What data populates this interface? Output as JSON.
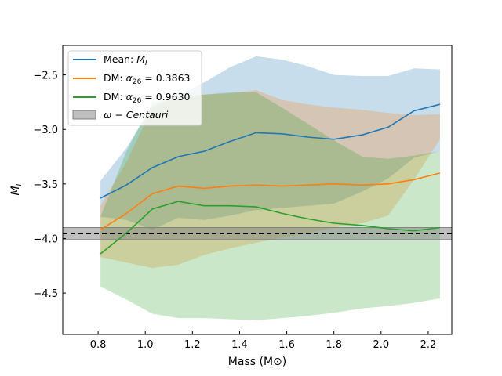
{
  "chart_data": {
    "type": "line",
    "xlabel": "Mass (M⊙)",
    "ylabel": "M_I",
    "xlim": [
      0.65,
      2.3
    ],
    "ylim": [
      -4.88,
      -2.23
    ],
    "xticks": [
      0.8,
      1.0,
      1.2,
      1.4,
      1.6,
      1.8,
      2.0,
      2.2
    ],
    "xtick_labels": [
      "0.8",
      "1.0",
      "1.2",
      "1.4",
      "1.6",
      "1.8",
      "2.0",
      "2.2"
    ],
    "yticks": [
      -4.5,
      -4.0,
      -3.5,
      -3.0,
      -2.5
    ],
    "ytick_labels": [
      "−4.5",
      "−4.0",
      "−3.5",
      "−3.0",
      "−2.5"
    ],
    "grid": false,
    "legend_position": "upper-left",
    "x": [
      0.81,
      0.92,
      1.03,
      1.14,
      1.25,
      1.36,
      1.47,
      1.58,
      1.69,
      1.8,
      1.92,
      2.03,
      2.14,
      2.25
    ],
    "series": [
      {
        "name": "Mean: M_I",
        "legend": "Mean: ",
        "legend_math": "M",
        "legend_sub": "I",
        "color": "#1f77b4",
        "values": [
          -3.63,
          -3.51,
          -3.35,
          -3.25,
          -3.2,
          -3.11,
          -3.03,
          -3.04,
          -3.07,
          -3.09,
          -3.05,
          -2.98,
          -2.83,
          -2.77
        ],
        "upper": [
          -3.47,
          -3.17,
          -2.78,
          -2.69,
          -2.57,
          -2.43,
          -2.33,
          -2.36,
          -2.42,
          -2.5,
          -2.51,
          -2.51,
          -2.44,
          -2.45
        ],
        "lower": [
          -3.8,
          -3.83,
          -3.92,
          -3.81,
          -3.83,
          -3.79,
          -3.74,
          -3.72,
          -3.7,
          -3.68,
          -3.57,
          -3.45,
          -3.26,
          -3.2
        ]
      },
      {
        "name": "DM: α26 = 0.3863",
        "legend": "DM: ",
        "legend_math": "α",
        "legend_sub": "26",
        "legend_tail": " = 0.3863",
        "color": "#ff7f0e",
        "values": [
          -3.92,
          -3.77,
          -3.59,
          -3.52,
          -3.54,
          -3.52,
          -3.51,
          -3.52,
          -3.51,
          -3.5,
          -3.51,
          -3.5,
          -3.46,
          -3.4
        ],
        "upper": [
          -3.7,
          -3.3,
          -2.8,
          -2.7,
          -2.68,
          -2.67,
          -2.64,
          -2.73,
          -2.77,
          -2.8,
          -2.82,
          -2.85,
          -2.87,
          -2.86
        ],
        "lower": [
          -4.17,
          -4.22,
          -4.27,
          -4.24,
          -4.15,
          -4.09,
          -4.04,
          -3.99,
          -3.95,
          -3.9,
          -3.86,
          -3.79,
          -3.46,
          -3.09
        ]
      },
      {
        "name": "DM: α26 = 0.9630",
        "legend": "DM: ",
        "legend_math": "α",
        "legend_sub": "26",
        "legend_tail": " = 0.9630",
        "color": "#2ca02c",
        "values": [
          -4.14,
          -3.95,
          -3.73,
          -3.66,
          -3.7,
          -3.7,
          -3.71,
          -3.77,
          -3.82,
          -3.86,
          -3.88,
          -3.91,
          -3.93,
          -3.9
        ],
        "upper": [
          -3.8,
          -3.2,
          -2.75,
          -2.7,
          -2.68,
          -2.66,
          -2.66,
          -2.8,
          -2.95,
          -3.1,
          -3.25,
          -3.27,
          -3.24,
          -3.2
        ],
        "lower": [
          -4.44,
          -4.56,
          -4.69,
          -4.73,
          -4.73,
          -4.74,
          -4.75,
          -4.73,
          -4.71,
          -4.68,
          -4.64,
          -4.62,
          -4.59,
          -4.55
        ]
      }
    ],
    "reference": {
      "name": "ω − Centauri",
      "legend": "ω − Centauri",
      "value": -3.955,
      "band": [
        -4.01,
        -3.9
      ],
      "color": "#808080",
      "line_style": "dashed"
    }
  }
}
